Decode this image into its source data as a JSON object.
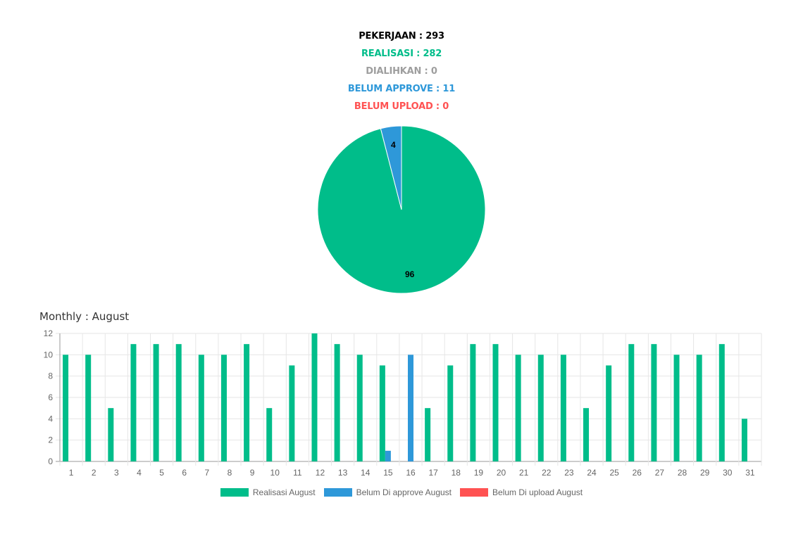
{
  "summary": {
    "pekerjaan": "PEKERJAAN : 293",
    "realisasi": "REALISASI : 282",
    "dialihkan": "DIALIHKAN : 0",
    "belum_approve": "BELUM APPROVE : 11",
    "belum_upload": "BELUM UPLOAD : 0"
  },
  "colors": {
    "black": "#000000",
    "green": "#00bd8a",
    "gray": "#9e9e9e",
    "blue": "#2e98d9",
    "red": "#ff5252"
  },
  "monthly_title": "Monthly : August",
  "chart_data": [
    {
      "type": "pie",
      "slices": [
        {
          "label": "96",
          "value": 96,
          "color": "#00bd8a"
        },
        {
          "label": "4",
          "value": 4,
          "color": "#2e98d9"
        }
      ]
    },
    {
      "type": "bar",
      "categories": [
        "1",
        "2",
        "3",
        "4",
        "5",
        "6",
        "7",
        "8",
        "9",
        "10",
        "11",
        "12",
        "13",
        "14",
        "15",
        "16",
        "17",
        "18",
        "19",
        "20",
        "21",
        "22",
        "23",
        "24",
        "25",
        "26",
        "27",
        "28",
        "29",
        "30",
        "31"
      ],
      "series": [
        {
          "name": "Realisasi August",
          "color": "#00bd8a",
          "values": [
            10,
            10,
            5,
            11,
            11,
            11,
            10,
            10,
            11,
            5,
            9,
            12,
            11,
            10,
            9,
            0,
            5,
            9,
            11,
            11,
            10,
            10,
            10,
            5,
            9,
            11,
            11,
            10,
            10,
            11,
            4
          ]
        },
        {
          "name": "Belum Di approve August",
          "color": "#2e98d9",
          "values": [
            0,
            0,
            0,
            0,
            0,
            0,
            0,
            0,
            0,
            0,
            0,
            0,
            0,
            0,
            1,
            10,
            0,
            0,
            0,
            0,
            0,
            0,
            0,
            0,
            0,
            0,
            0,
            0,
            0,
            0,
            0
          ]
        },
        {
          "name": "Belum Di upload August",
          "color": "#ff5252",
          "values": [
            0,
            0,
            0,
            0,
            0,
            0,
            0,
            0,
            0,
            0,
            0,
            0,
            0,
            0,
            0,
            0,
            0,
            0,
            0,
            0,
            0,
            0,
            0,
            0,
            0,
            0,
            0,
            0,
            0,
            0,
            0
          ]
        }
      ],
      "ylim": [
        0,
        12
      ],
      "yticks": [
        "0",
        "2",
        "4",
        "6",
        "8",
        "10",
        "12"
      ],
      "grid": true,
      "legend": "bottom"
    }
  ]
}
